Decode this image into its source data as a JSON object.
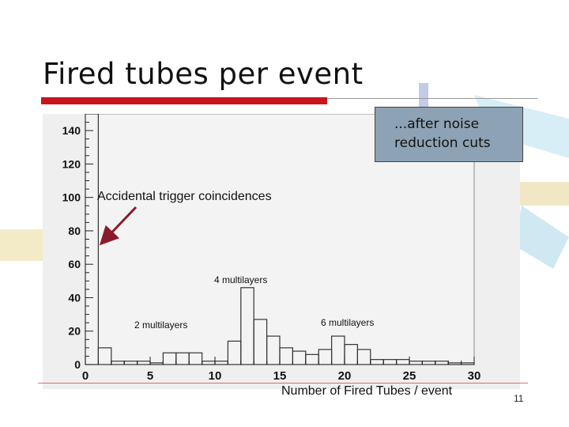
{
  "slide": {
    "title": "Fired tubes per event",
    "note": "...after noise reduction cuts",
    "page_number": "11",
    "accent_color": "#c8141c"
  },
  "annotations": {
    "accidental": "Accidental trigger coincidences",
    "multilayers_2": "2 multilayers",
    "multilayers_4": "4 multilayers",
    "multilayers_6": "6 multilayers"
  },
  "chart_data": {
    "type": "bar",
    "style": "step-histogram",
    "title": "",
    "xlabel": "Number of Fired Tubes / event",
    "ylabel": "",
    "xlim": [
      0,
      30
    ],
    "ylim": [
      0,
      150
    ],
    "x_ticks": [
      0,
      5,
      10,
      15,
      20,
      25,
      30
    ],
    "y_ticks": [
      0,
      20,
      40,
      60,
      80,
      100,
      120,
      140
    ],
    "grid": false,
    "bins": [
      0,
      1,
      2,
      3,
      4,
      5,
      6,
      7,
      8,
      9,
      10,
      11,
      12,
      13,
      14,
      15,
      16,
      17,
      18,
      19,
      20,
      21,
      22,
      23,
      24,
      25,
      26,
      27,
      28,
      29
    ],
    "values": [
      150,
      10,
      2,
      2,
      2,
      1,
      7,
      7,
      7,
      2,
      2,
      14,
      46,
      27,
      17,
      10,
      8,
      6,
      9,
      17,
      12,
      9,
      3,
      3,
      3,
      2,
      2,
      2,
      1,
      1
    ],
    "arrow_color": "#8b1a2a"
  }
}
